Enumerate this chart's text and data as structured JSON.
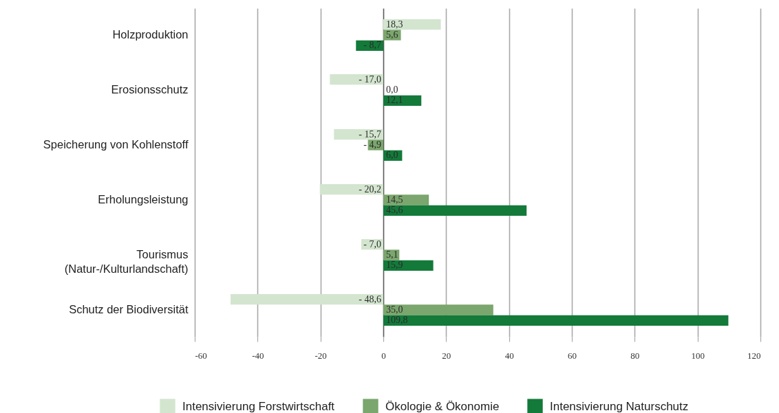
{
  "chart_data": {
    "type": "bar",
    "orientation": "horizontal",
    "categories": [
      "Holzproduktion",
      "Erosionsschutz",
      "Speicherung von Kohlenstoff",
      "Erholungsleistung",
      "Tourismus\n(Natur-/Kulturlandschaft)",
      "Schutz der Biodiversität"
    ],
    "series": [
      {
        "name": "Intensivierung Forstwirtschaft",
        "color": "#d3e5cf",
        "values": [
          18.3,
          -17.0,
          -15.7,
          -20.2,
          -7.0,
          -48.6
        ],
        "value_labels": [
          "18,3",
          "- 17,0",
          "- 15,7",
          "- 20,2",
          "- 7,0",
          "- 48,6"
        ]
      },
      {
        "name": "Ökologie & Ökonomie",
        "color": "#7ba66d",
        "values": [
          5.6,
          0.0,
          -4.9,
          14.5,
          5.1,
          35.0
        ],
        "value_labels": [
          "5,6",
          "0,0",
          "- 4,9",
          "14,5",
          "5,1",
          "35,0"
        ]
      },
      {
        "name": "Intensivierung Naturschutz",
        "color": "#137a3a",
        "values": [
          -8.7,
          12.1,
          6.0,
          45.6,
          15.9,
          109.8
        ],
        "value_labels": [
          "- 8,7",
          "12,1",
          "6,0",
          "45,6",
          "15,9",
          "109,8"
        ]
      }
    ],
    "xlim": [
      -60,
      120
    ],
    "xticks": [
      -60,
      -40,
      -20,
      0,
      20,
      40,
      60,
      80,
      100,
      120
    ],
    "grid": "x",
    "legend": "bottom"
  }
}
